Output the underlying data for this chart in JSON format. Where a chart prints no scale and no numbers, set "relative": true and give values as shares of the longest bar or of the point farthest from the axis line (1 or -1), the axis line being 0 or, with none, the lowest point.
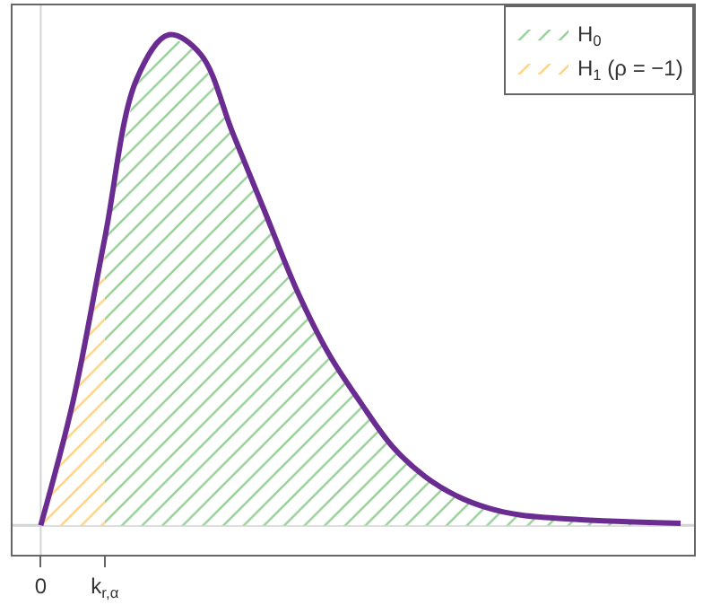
{
  "chart_data": {
    "type": "area",
    "relative": true,
    "categories": [
      "0",
      null,
      "k$_{r,α}$",
      null,
      null,
      null,
      null,
      null,
      null,
      null,
      null,
      null,
      null,
      null,
      null,
      null,
      null,
      null,
      null,
      null,
      null
    ],
    "legend": "top right",
    "line_style": "solid",
    "marker": "none",
    "series": [
      {
        "name": "H$_{0}$",
        "color": "#2ca02c",
        "values": [
          null,
          null,
          0.585,
          0.91,
          1.0,
          0.96,
          0.8,
          0.64,
          0.48,
          0.35,
          0.25,
          0.16,
          0.1,
          0.06,
          0.035,
          0.021,
          0.015,
          0.011,
          0.008,
          0.006,
          0.004
        ]
      },
      {
        "name": "H$_{1}$ (ρ = −1)",
        "color": "#ffa500",
        "values": [
          0,
          0.25,
          0.585,
          null,
          null,
          null,
          null,
          null,
          null,
          null,
          null,
          null,
          null,
          null,
          null,
          null,
          null,
          null,
          null,
          null,
          null
        ]
      },
      {
        "type": "line",
        "color": "#6a2c91",
        "values": [
          0,
          0.25,
          0.585,
          0.91,
          1.0,
          0.96,
          0.8,
          0.64,
          0.48,
          0.35,
          0.25,
          0.16,
          0.1,
          0.06,
          0.035,
          0.021,
          0.015,
          0.011,
          0.008,
          0.006,
          0.004
        ]
      }
    ],
    "ref_lines": [
      {
        "axis": "x",
        "value": "0",
        "color": "#d3d3d3"
      },
      {
        "axis": "y",
        "value": 0,
        "color": "#d3d3d3"
      }
    ]
  }
}
